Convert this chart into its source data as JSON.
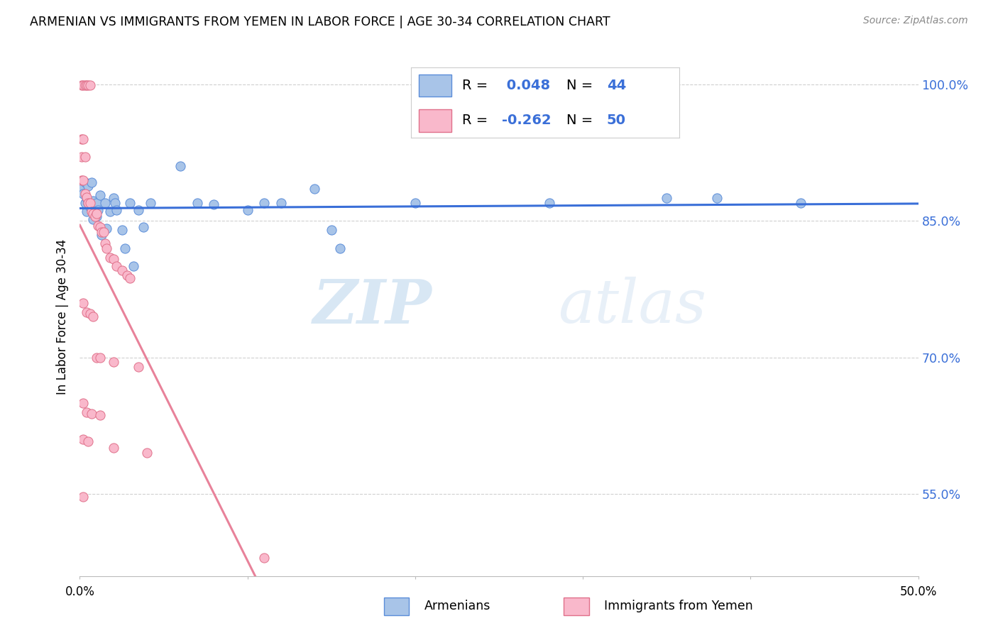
{
  "title": "ARMENIAN VS IMMIGRANTS FROM YEMEN IN LABOR FORCE | AGE 30-34 CORRELATION CHART",
  "source": "Source: ZipAtlas.com",
  "ylabel": "In Labor Force | Age 30-34",
  "yaxis_labels": [
    "100.0%",
    "85.0%",
    "70.0%",
    "55.0%"
  ],
  "yaxis_values": [
    1.0,
    0.85,
    0.7,
    0.55
  ],
  "xlim": [
    0.0,
    0.5
  ],
  "ylim": [
    0.46,
    1.03
  ],
  "legend_r_armenian": "0.048",
  "legend_n_armenian": "44",
  "legend_r_yemen": "-0.262",
  "legend_n_yemen": "50",
  "watermark_zip": "ZIP",
  "watermark_atlas": "atlas",
  "blue_fill": "#a8c4e8",
  "blue_edge": "#5b8dd9",
  "pink_fill": "#f9b8cb",
  "pink_edge": "#e0708a",
  "blue_line": "#3a6fd8",
  "pink_line": "#e8829a",
  "grid_color": "#d0d0d0",
  "blue_scatter": [
    [
      0.001,
      0.885
    ],
    [
      0.002,
      0.88
    ],
    [
      0.003,
      0.87
    ],
    [
      0.003,
      0.892
    ],
    [
      0.004,
      0.875
    ],
    [
      0.004,
      0.86
    ],
    [
      0.005,
      0.888
    ],
    [
      0.005,
      0.87
    ],
    [
      0.006,
      0.865
    ],
    [
      0.007,
      0.892
    ],
    [
      0.008,
      0.872
    ],
    [
      0.008,
      0.852
    ],
    [
      0.01,
      0.87
    ],
    [
      0.01,
      0.855
    ],
    [
      0.011,
      0.862
    ],
    [
      0.012,
      0.878
    ],
    [
      0.013,
      0.835
    ],
    [
      0.015,
      0.87
    ],
    [
      0.016,
      0.842
    ],
    [
      0.018,
      0.86
    ],
    [
      0.02,
      0.875
    ],
    [
      0.021,
      0.87
    ],
    [
      0.022,
      0.862
    ],
    [
      0.025,
      0.84
    ],
    [
      0.027,
      0.82
    ],
    [
      0.03,
      0.87
    ],
    [
      0.032,
      0.8
    ],
    [
      0.035,
      0.862
    ],
    [
      0.038,
      0.843
    ],
    [
      0.042,
      0.87
    ],
    [
      0.06,
      0.91
    ],
    [
      0.07,
      0.87
    ],
    [
      0.08,
      0.868
    ],
    [
      0.1,
      0.862
    ],
    [
      0.11,
      0.87
    ],
    [
      0.12,
      0.87
    ],
    [
      0.14,
      0.885
    ],
    [
      0.15,
      0.84
    ],
    [
      0.155,
      0.82
    ],
    [
      0.2,
      0.87
    ],
    [
      0.28,
      0.87
    ],
    [
      0.35,
      0.875
    ],
    [
      0.38,
      0.875
    ],
    [
      0.43,
      0.87
    ]
  ],
  "pink_scatter": [
    [
      0.001,
      0.999
    ],
    [
      0.002,
      0.999
    ],
    [
      0.003,
      0.999
    ],
    [
      0.004,
      0.999
    ],
    [
      0.005,
      0.999
    ],
    [
      0.006,
      0.999
    ],
    [
      0.001,
      0.94
    ],
    [
      0.002,
      0.94
    ],
    [
      0.001,
      0.92
    ],
    [
      0.003,
      0.92
    ],
    [
      0.001,
      0.895
    ],
    [
      0.002,
      0.895
    ],
    [
      0.003,
      0.88
    ],
    [
      0.004,
      0.876
    ],
    [
      0.005,
      0.87
    ],
    [
      0.006,
      0.87
    ],
    [
      0.007,
      0.86
    ],
    [
      0.008,
      0.858
    ],
    [
      0.009,
      0.855
    ],
    [
      0.01,
      0.858
    ],
    [
      0.011,
      0.845
    ],
    [
      0.012,
      0.843
    ],
    [
      0.013,
      0.838
    ],
    [
      0.014,
      0.838
    ],
    [
      0.015,
      0.825
    ],
    [
      0.016,
      0.82
    ],
    [
      0.018,
      0.81
    ],
    [
      0.02,
      0.808
    ],
    [
      0.022,
      0.8
    ],
    [
      0.025,
      0.796
    ],
    [
      0.028,
      0.79
    ],
    [
      0.03,
      0.787
    ],
    [
      0.002,
      0.76
    ],
    [
      0.004,
      0.75
    ],
    [
      0.006,
      0.748
    ],
    [
      0.008,
      0.745
    ],
    [
      0.01,
      0.7
    ],
    [
      0.012,
      0.7
    ],
    [
      0.02,
      0.695
    ],
    [
      0.035,
      0.69
    ],
    [
      0.002,
      0.65
    ],
    [
      0.004,
      0.64
    ],
    [
      0.007,
      0.638
    ],
    [
      0.012,
      0.637
    ],
    [
      0.002,
      0.61
    ],
    [
      0.005,
      0.608
    ],
    [
      0.02,
      0.601
    ],
    [
      0.04,
      0.595
    ],
    [
      0.002,
      0.547
    ],
    [
      0.11,
      0.48
    ]
  ]
}
